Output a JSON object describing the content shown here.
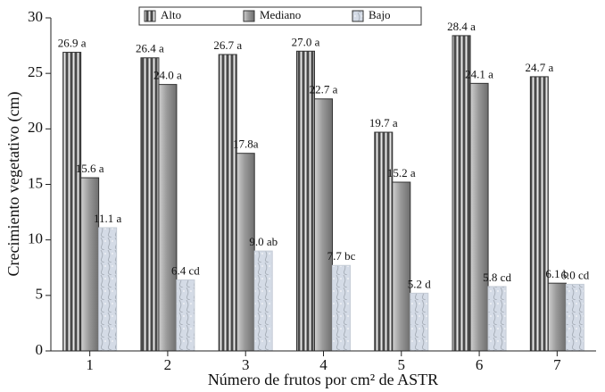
{
  "chart_data": {
    "type": "bar",
    "x_label": "Número de frutos por cm² de ASTR",
    "y_label": "Crecimiento vegetativo (cm)",
    "categories": [
      "1",
      "2",
      "3",
      "4",
      "5",
      "6",
      "7"
    ],
    "series": [
      {
        "name": "Alto",
        "color": "#4a4a4a",
        "values": [
          26.9,
          26.4,
          26.7,
          27.0,
          19.7,
          28.4,
          24.7
        ],
        "value_labels": [
          "26.9 a",
          "26.4 a",
          "26.7 a",
          "27.0 a",
          "19.7 a",
          "28.4 a",
          "24.7 a"
        ]
      },
      {
        "name": "Mediano",
        "color": "#9a9a9a",
        "values": [
          15.6,
          24.0,
          17.8,
          22.7,
          15.2,
          24.1,
          6.1
        ],
        "value_labels": [
          "15.6 a",
          "24.0 a",
          "17.8a",
          "22.7 a",
          "15.2 a",
          "24.1 a",
          "6.1 b"
        ]
      },
      {
        "name": "Bajo",
        "color": "#d4dbe6",
        "values": [
          11.1,
          6.4,
          9.0,
          7.7,
          5.2,
          5.8,
          6.0
        ],
        "value_labels": [
          "11.1 a",
          "6.4 cd",
          "9.0 ab",
          "7.7 bc",
          "5.2 d",
          "5.8 cd",
          "6.0 cd"
        ]
      }
    ],
    "ylim": [
      0,
      30
    ],
    "yticks": [
      0,
      5,
      10,
      15,
      20,
      25,
      30
    ],
    "legend": "top"
  }
}
